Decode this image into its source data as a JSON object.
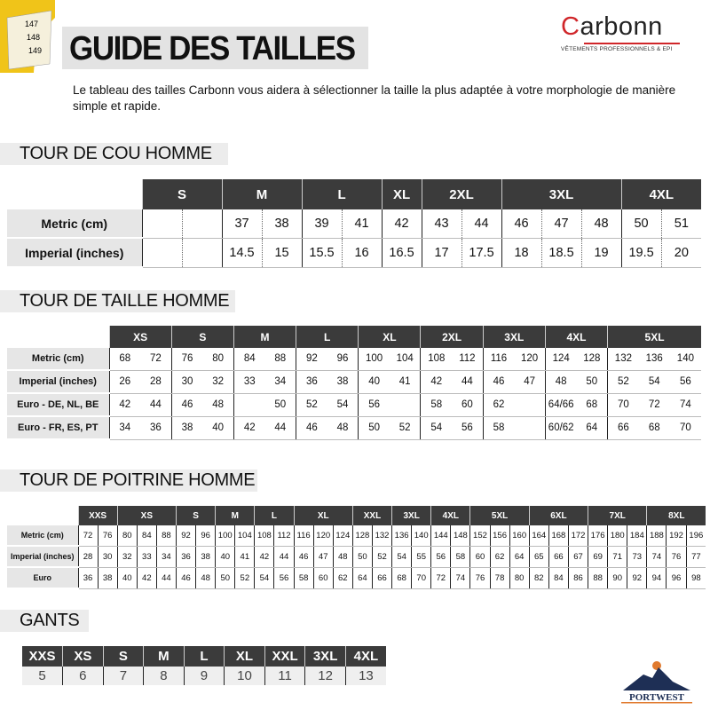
{
  "header": {
    "title": "GUIDE DES TAILLES",
    "intro": "Le tableau des tailles Carbonn vous aidera à sélectionner la taille la plus adaptée à votre morphologie de manière simple et rapide.",
    "tape_icon": "tape-measure",
    "tape_numbers": [
      "147",
      "148",
      "149"
    ]
  },
  "logo": {
    "brand": "Carbonn",
    "tagline": "VÊTEMENTS PROFESSIONNELS & EPI",
    "brand_color": "#d0262a"
  },
  "footer_logo": {
    "brand": "PORTWEST"
  },
  "tables": [
    {
      "title": "TOUR DE COU HOMME",
      "sizes": [
        {
          "label": "S",
          "span": 2
        },
        {
          "label": "M",
          "span": 2
        },
        {
          "label": "L",
          "span": 2
        },
        {
          "label": "XL",
          "span": 1
        },
        {
          "label": "2XL",
          "span": 2
        },
        {
          "label": "3XL",
          "span": 3
        },
        {
          "label": "4XL",
          "span": 2
        }
      ],
      "rows": [
        {
          "label": "Metric (cm)",
          "values": [
            "",
            "",
            "37",
            "38",
            "39",
            "41",
            "42",
            "43",
            "44",
            "46",
            "47",
            "48",
            "50",
            "51"
          ]
        },
        {
          "label": "Imperial (inches)",
          "values": [
            "",
            "",
            "14.5",
            "15",
            "15.5",
            "16",
            "16.5",
            "17",
            "17.5",
            "18",
            "18.5",
            "19",
            "19.5",
            "20"
          ]
        }
      ]
    },
    {
      "title": "TOUR DE TAILLE HOMME",
      "sizes": [
        {
          "label": "XS",
          "span": 2
        },
        {
          "label": "S",
          "span": 2
        },
        {
          "label": "M",
          "span": 2
        },
        {
          "label": "L",
          "span": 2
        },
        {
          "label": "XL",
          "span": 2
        },
        {
          "label": "2XL",
          "span": 2
        },
        {
          "label": "3XL",
          "span": 2
        },
        {
          "label": "4XL",
          "span": 2
        },
        {
          "label": "5XL",
          "span": 3
        }
      ],
      "rows": [
        {
          "label": "Metric (cm)",
          "values": [
            "68",
            "72",
            "76",
            "80",
            "84",
            "88",
            "92",
            "96",
            "100",
            "104",
            "108",
            "112",
            "116",
            "120",
            "124",
            "128",
            "132",
            "136",
            "140"
          ]
        },
        {
          "label": "Imperial (inches)",
          "values": [
            "26",
            "28",
            "30",
            "32",
            "33",
            "34",
            "36",
            "38",
            "40",
            "41",
            "42",
            "44",
            "46",
            "47",
            "48",
            "50",
            "52",
            "54",
            "56"
          ]
        },
        {
          "label": "Euro - DE, NL, BE",
          "values": [
            "42",
            "44",
            "46",
            "48",
            "",
            "50",
            "52",
            "54",
            "56",
            "",
            "58",
            "60",
            "62",
            "",
            "64/66",
            "68",
            "70",
            "72",
            "74"
          ]
        },
        {
          "label": "Euro - FR, ES, PT",
          "values": [
            "34",
            "36",
            "38",
            "40",
            "42",
            "44",
            "46",
            "48",
            "50",
            "52",
            "54",
            "56",
            "58",
            "",
            "60/62",
            "64",
            "66",
            "68",
            "70"
          ]
        }
      ]
    },
    {
      "title": "TOUR DE POITRINE HOMME",
      "sizes": [
        {
          "label": "XXS",
          "span": 2
        },
        {
          "label": "XS",
          "span": 3
        },
        {
          "label": "S",
          "span": 2
        },
        {
          "label": "M",
          "span": 2
        },
        {
          "label": "L",
          "span": 2
        },
        {
          "label": "XL",
          "span": 3
        },
        {
          "label": "XXL",
          "span": 2
        },
        {
          "label": "3XL",
          "span": 2
        },
        {
          "label": "4XL",
          "span": 2
        },
        {
          "label": "5XL",
          "span": 3
        },
        {
          "label": "6XL",
          "span": 3
        },
        {
          "label": "7XL",
          "span": 3
        },
        {
          "label": "8XL",
          "span": 3
        }
      ],
      "rows": [
        {
          "label": "Metric (cm)",
          "values": [
            "72",
            "76",
            "80",
            "84",
            "88",
            "92",
            "96",
            "100",
            "104",
            "108",
            "112",
            "116",
            "120",
            "124",
            "128",
            "132",
            "136",
            "140",
            "144",
            "148",
            "152",
            "156",
            "160",
            "164",
            "168",
            "172",
            "176",
            "180",
            "184",
            "188",
            "192",
            "196"
          ]
        },
        {
          "label": "Imperial (inches)",
          "values": [
            "28",
            "30",
            "32",
            "33",
            "34",
            "36",
            "38",
            "40",
            "41",
            "42",
            "44",
            "46",
            "47",
            "48",
            "50",
            "52",
            "54",
            "55",
            "56",
            "58",
            "60",
            "62",
            "64",
            "65",
            "66",
            "67",
            "69",
            "71",
            "73",
            "74",
            "76",
            "77"
          ]
        },
        {
          "label": "Euro",
          "values": [
            "36",
            "38",
            "40",
            "42",
            "44",
            "46",
            "48",
            "50",
            "52",
            "54",
            "56",
            "58",
            "60",
            "62",
            "64",
            "66",
            "68",
            "70",
            "72",
            "74",
            "76",
            "78",
            "80",
            "82",
            "84",
            "86",
            "88",
            "90",
            "92",
            "94",
            "96",
            "98"
          ]
        }
      ]
    }
  ],
  "gants": {
    "title": "GANTS",
    "sizes": [
      "XXS",
      "XS",
      "S",
      "M",
      "L",
      "XL",
      "XXL",
      "3XL",
      "4XL"
    ],
    "values": [
      "5",
      "6",
      "7",
      "8",
      "9",
      "10",
      "11",
      "12",
      "13"
    ]
  }
}
